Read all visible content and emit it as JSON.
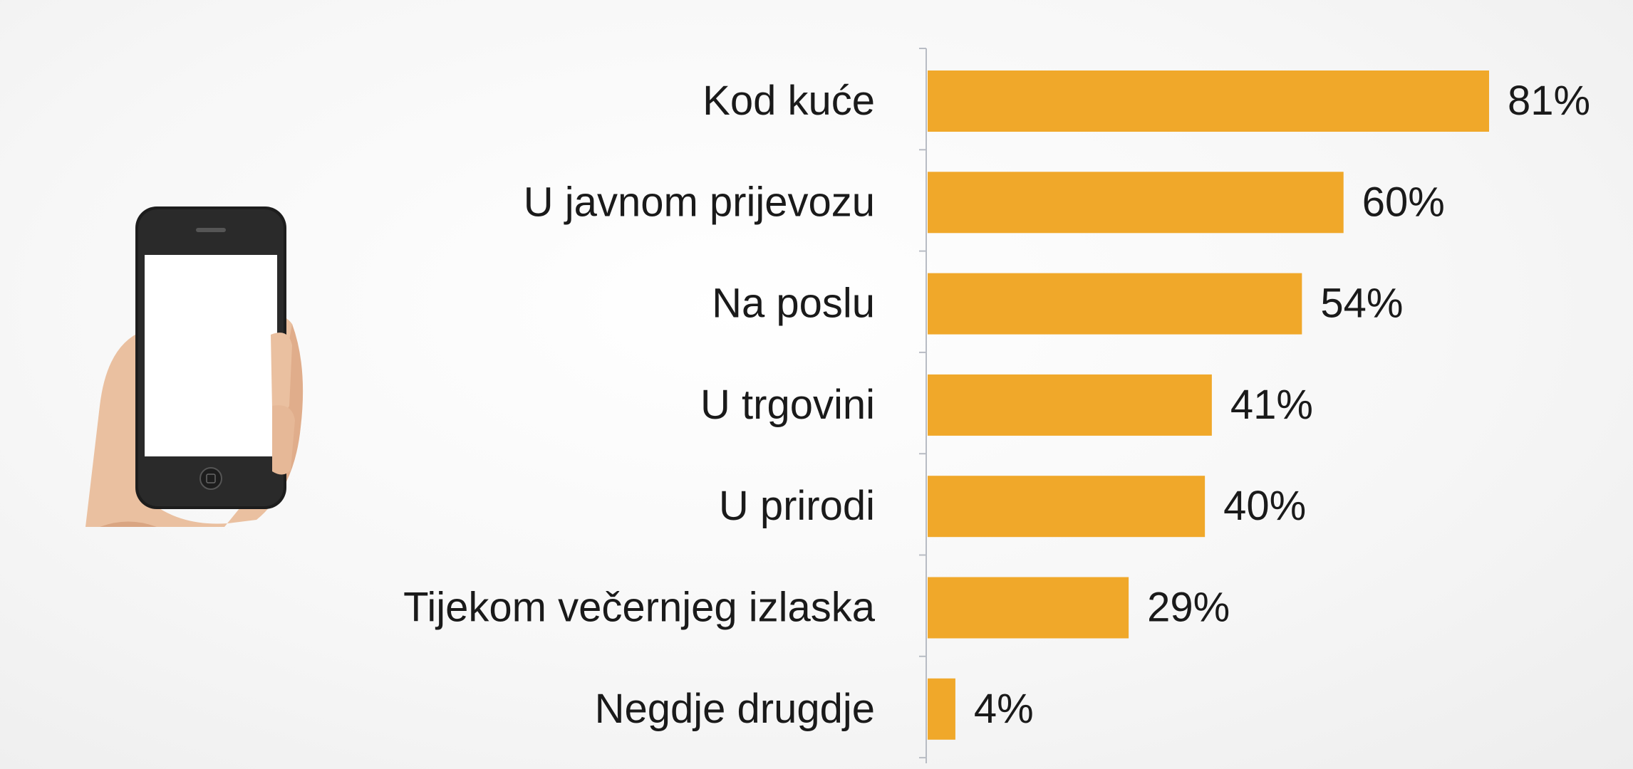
{
  "chart_data": {
    "type": "bar",
    "orientation": "horizontal",
    "categories": [
      "Kod kuće",
      "U javnom prijevozu",
      "Na poslu",
      "U trgovini",
      "U prirodi",
      "Tijekom večernjeg izlaska",
      "Negdje drugdje"
    ],
    "values": [
      81,
      60,
      54,
      41,
      40,
      29,
      4
    ],
    "value_labels": [
      "81%",
      "60%",
      "54%",
      "41%",
      "40%",
      "29%",
      "4%"
    ],
    "xlim": [
      0,
      81
    ],
    "grid": false,
    "legend": "none",
    "bar_color": "#F0A82A"
  },
  "illustration": {
    "icon": "hand-holding-smartphone-icon"
  }
}
